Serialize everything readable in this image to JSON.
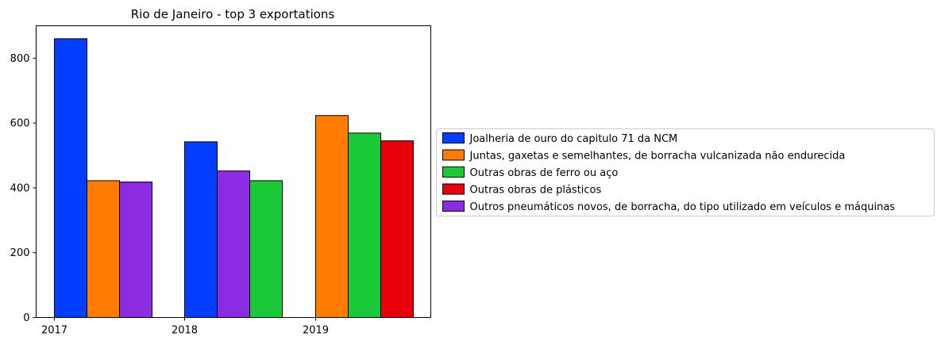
{
  "chart_data": {
    "type": "bar",
    "title": "Rio de Janeiro - top 3 exportations",
    "xlabel": "",
    "ylabel": "",
    "ylim": [
      0,
      900
    ],
    "yticks": [
      0,
      200,
      400,
      600,
      800
    ],
    "grid": false,
    "legend_position": "right",
    "categories": [
      "2017",
      "2018",
      "2019"
    ],
    "series": [
      {
        "name": "Joalheria de ouro do capitulo 71 da NCM",
        "color": "#023eff",
        "values": [
          860,
          542,
          null
        ]
      },
      {
        "name": "Juntas, gaxetas e semelhantes, de borracha vulcanizada não endurecida",
        "color": "#ff7c00",
        "values": [
          422,
          null,
          623
        ]
      },
      {
        "name": "Outras obras de ferro ou aço",
        "color": "#1ac938",
        "values": [
          null,
          422,
          569
        ]
      },
      {
        "name": "Outras obras de plásticos",
        "color": "#e8000b",
        "values": [
          null,
          null,
          545
        ]
      },
      {
        "name": "Outros pneumáticos novos, de borracha, do tipo utilizado em veículos e máquinas",
        "color": "#8b2be2",
        "values": [
          418,
          452,
          null
        ]
      }
    ],
    "bars": [
      {
        "category": "2017",
        "series": "Joalheria de ouro do capitulo 71 da NCM",
        "value": 860
      },
      {
        "category": "2017",
        "series": "Juntas, gaxetas e semelhantes, de borracha vulcanizada não endurecida",
        "value": 422
      },
      {
        "category": "2017",
        "series": "Outros pneumáticos novos, de borracha, do tipo utilizado em veículos e máquinas",
        "value": 418
      },
      {
        "category": "2018",
        "series": "Joalheria de ouro do capitulo 71 da NCM",
        "value": 542
      },
      {
        "category": "2018",
        "series": "Outros pneumáticos novos, de borracha, do tipo utilizado em veículos e máquinas",
        "value": 452
      },
      {
        "category": "2018",
        "series": "Outras obras de ferro ou aço",
        "value": 422
      },
      {
        "category": "2019",
        "series": "Juntas, gaxetas e semelhantes, de borracha vulcanizada não endurecida",
        "value": 623
      },
      {
        "category": "2019",
        "series": "Outras obras de ferro ou aço",
        "value": 569
      },
      {
        "category": "2019",
        "series": "Outras obras de plásticos",
        "value": 545
      }
    ]
  }
}
